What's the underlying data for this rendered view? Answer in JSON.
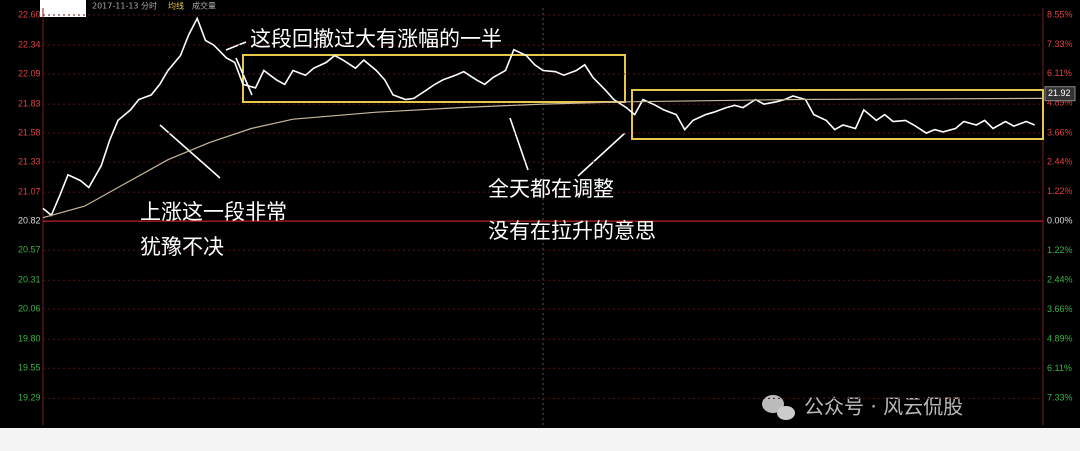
{
  "chart_data": {
    "type": "line",
    "header": {
      "date": "2017-11-13 分时",
      "volume": "成交量"
    },
    "xlim": [
      0,
      240
    ],
    "ylim": [
      19.06,
      22.66
    ],
    "yticks": [
      {
        "value": 22.6,
        "label": "22.60"
      },
      {
        "value": 22.34,
        "label": "22.34"
      },
      {
        "value": 22.09,
        "label": "22.09"
      },
      {
        "value": 21.83,
        "label": "21.83"
      },
      {
        "value": 21.58,
        "label": "21.58"
      },
      {
        "value": 21.33,
        "label": "21.33"
      },
      {
        "value": 21.07,
        "label": "21.07"
      },
      {
        "value": 20.82,
        "label": "20.82"
      },
      {
        "value": 20.57,
        "label": "20.57"
      },
      {
        "value": 20.31,
        "label": "20.31"
      },
      {
        "value": 20.06,
        "label": "20.06"
      },
      {
        "value": 19.8,
        "label": "19.80"
      },
      {
        "value": 19.55,
        "label": "19.55"
      },
      {
        "value": 19.29,
        "label": "19.29"
      }
    ],
    "y2lim": [
      -8.45,
      8.84
    ],
    "y2ticks": [
      {
        "value": 8.55,
        "label": "8.55%"
      },
      {
        "value": 7.33,
        "label": "7.33%"
      },
      {
        "value": 6.11,
        "label": "6.11%"
      },
      {
        "value": 4.89,
        "label": "4.89%"
      },
      {
        "value": 3.66,
        "label": "3.66%"
      },
      {
        "value": 2.44,
        "label": "2.44%"
      },
      {
        "value": 1.22,
        "label": "1.22%"
      },
      {
        "value": 0,
        "label": "0.00%"
      },
      {
        "value": -1.22,
        "label": "1.22%"
      },
      {
        "value": -2.44,
        "label": "2.44%"
      },
      {
        "value": -3.66,
        "label": "3.66%"
      },
      {
        "value": -4.89,
        "label": "4.89%"
      },
      {
        "value": -6.11,
        "label": "6.11%"
      },
      {
        "value": -7.33,
        "label": "7.33%"
      }
    ],
    "price_tag": {
      "value": 21.92,
      "label": "21.92"
    },
    "grid": true,
    "series": [
      {
        "color": "#ffffff",
        "x": [
          0,
          2,
          4,
          6,
          9,
          11,
          14,
          16,
          18,
          21,
          23,
          26,
          28,
          30,
          33,
          35,
          37,
          39,
          41,
          44,
          46,
          48,
          51,
          53,
          56,
          58,
          60,
          63,
          65,
          68,
          70,
          72,
          75,
          77,
          80,
          82,
          84,
          87,
          89,
          92,
          94,
          96,
          99,
          101,
          104,
          106,
          108,
          111,
          113,
          116,
          118,
          120,
          123,
          125,
          128,
          130,
          132,
          135,
          137,
          140,
          142,
          144,
          147,
          149,
          152,
          154,
          156,
          159,
          161,
          164,
          166,
          168,
          171,
          173,
          176,
          178,
          180,
          183,
          185,
          188,
          190,
          192,
          195,
          197,
          200,
          202,
          204,
          207,
          209,
          212,
          214,
          216,
          219,
          221,
          224,
          226,
          228,
          231,
          233,
          236,
          238
        ],
        "values": [
          20.93,
          20.87,
          21.04,
          21.22,
          21.17,
          21.11,
          21.3,
          21.52,
          21.69,
          21.78,
          21.87,
          21.91,
          22.0,
          22.12,
          22.25,
          22.43,
          22.57,
          22.38,
          22.34,
          22.23,
          22.19,
          22.0,
          21.97,
          22.12,
          22.04,
          22.0,
          22.12,
          22.08,
          22.14,
          22.19,
          22.25,
          22.21,
          22.14,
          22.21,
          22.12,
          22.04,
          21.91,
          21.87,
          21.88,
          21.95,
          22.0,
          22.04,
          22.08,
          22.11,
          22.04,
          22.0,
          22.06,
          22.12,
          22.3,
          22.25,
          22.17,
          22.12,
          22.11,
          22.08,
          22.12,
          22.17,
          22.06,
          21.95,
          21.87,
          21.8,
          21.74,
          21.87,
          21.82,
          21.78,
          21.74,
          21.61,
          21.69,
          21.74,
          21.76,
          21.8,
          21.82,
          21.8,
          21.87,
          21.83,
          21.85,
          21.87,
          21.9,
          21.87,
          21.74,
          21.69,
          21.61,
          21.65,
          21.62,
          21.78,
          21.69,
          21.74,
          21.68,
          21.69,
          21.65,
          21.58,
          21.61,
          21.59,
          21.62,
          21.68,
          21.65,
          21.69,
          21.62,
          21.68,
          21.64,
          21.68,
          21.65
        ]
      },
      {
        "name": "均线",
        "color": "#c8b89a",
        "x": [
          0,
          10,
          20,
          30,
          40,
          50,
          60,
          80,
          100,
          120,
          140,
          180,
          240
        ],
        "values": [
          20.85,
          20.95,
          21.15,
          21.35,
          21.5,
          21.62,
          21.7,
          21.76,
          21.8,
          21.83,
          21.85,
          21.87,
          21.88
        ]
      }
    ],
    "annotations": [
      {
        "text": "这段回撤过大有涨幅的一半"
      },
      {
        "text": "上涨这一段非常"
      },
      {
        "text": "犹豫不决"
      },
      {
        "text": "全天都在调整"
      },
      {
        "text": "没有在拉升的意思"
      }
    ],
    "watermark": "公众号 · 风云侃股"
  }
}
